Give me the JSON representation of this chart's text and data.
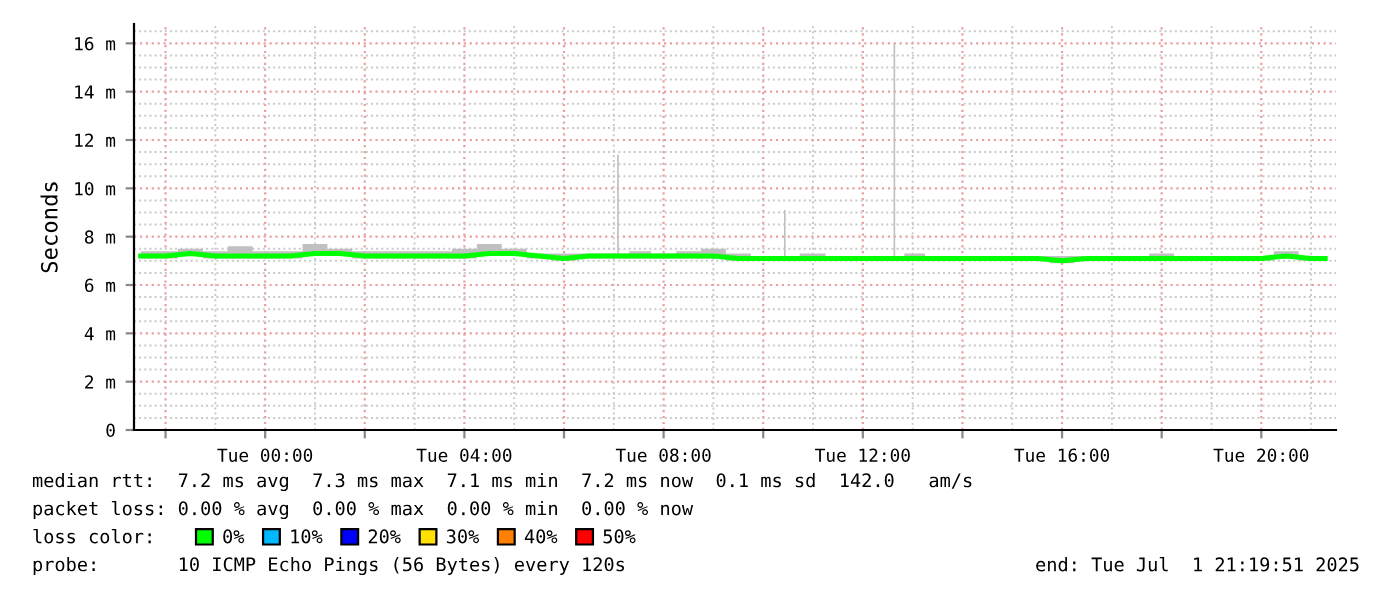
{
  "chart_data": {
    "type": "line",
    "ylabel": "Seconds",
    "x": [
      "2025-06-30T21:30",
      "2025-06-30T22:00",
      "2025-06-30T22:30",
      "2025-06-30T23:00",
      "2025-06-30T23:30",
      "2025-07-01T00:00",
      "2025-07-01T00:30",
      "2025-07-01T01:00",
      "2025-07-01T01:30",
      "2025-07-01T02:00",
      "2025-07-01T02:30",
      "2025-07-01T03:00",
      "2025-07-01T03:30",
      "2025-07-01T04:00",
      "2025-07-01T04:30",
      "2025-07-01T05:00",
      "2025-07-01T05:30",
      "2025-07-01T06:00",
      "2025-07-01T06:30",
      "2025-07-01T07:00",
      "2025-07-01T07:03",
      "2025-07-01T07:05",
      "2025-07-01T07:07",
      "2025-07-01T07:30",
      "2025-07-01T08:00",
      "2025-07-01T08:30",
      "2025-07-01T09:00",
      "2025-07-01T09:30",
      "2025-07-01T10:00",
      "2025-07-01T10:24",
      "2025-07-01T10:26",
      "2025-07-01T10:28",
      "2025-07-01T11:00",
      "2025-07-01T11:30",
      "2025-07-01T12:00",
      "2025-07-01T12:30",
      "2025-07-01T12:36",
      "2025-07-01T12:38",
      "2025-07-01T12:40",
      "2025-07-01T13:00",
      "2025-07-01T13:30",
      "2025-07-01T14:00",
      "2025-07-01T14:30",
      "2025-07-01T15:00",
      "2025-07-01T15:30",
      "2025-07-01T16:00",
      "2025-07-01T16:30",
      "2025-07-01T17:00",
      "2025-07-01T17:30",
      "2025-07-01T18:00",
      "2025-07-01T18:30",
      "2025-07-01T19:00",
      "2025-07-01T19:30",
      "2025-07-01T20:00",
      "2025-07-01T20:30",
      "2025-07-01T21:00",
      "2025-07-01T21:17"
    ],
    "series": [
      {
        "name": "0%",
        "color": "#00ff00",
        "values": [
          7.2,
          7.2,
          7.3,
          7.2,
          7.2,
          7.2,
          7.2,
          7.3,
          7.3,
          7.2,
          7.2,
          7.2,
          7.2,
          7.2,
          7.3,
          7.3,
          7.2,
          7.1,
          7.2,
          7.2,
          7.2,
          7.2,
          7.2,
          7.2,
          7.2,
          7.2,
          7.2,
          7.1,
          7.1,
          7.1,
          7.1,
          7.1,
          7.1,
          7.1,
          7.1,
          7.1,
          7.1,
          7.1,
          7.1,
          7.1,
          7.1,
          7.1,
          7.1,
          7.1,
          7.1,
          7.0,
          7.1,
          7.1,
          7.1,
          7.1,
          7.1,
          7.1,
          7.1,
          7.1,
          7.2,
          7.1,
          7.1
        ],
        "lower": [
          7.1,
          7.1,
          7.2,
          7.1,
          7.1,
          7.1,
          7.1,
          7.2,
          7.2,
          7.1,
          7.1,
          7.1,
          7.1,
          7.1,
          7.2,
          7.2,
          7.1,
          7.0,
          7.1,
          7.1,
          7.1,
          7.1,
          7.1,
          7.1,
          7.1,
          7.1,
          7.1,
          7.0,
          7.0,
          7.0,
          7.0,
          7.0,
          7.0,
          7.0,
          7.0,
          7.0,
          7.0,
          7.0,
          7.0,
          7.0,
          7.0,
          7.0,
          7.0,
          7.0,
          7.0,
          6.9,
          7.0,
          7.0,
          7.0,
          7.0,
          7.0,
          7.0,
          7.0,
          7.0,
          7.1,
          7.0,
          7.0
        ],
        "upper": [
          7.4,
          7.4,
          7.5,
          7.4,
          7.6,
          7.4,
          7.4,
          7.7,
          7.5,
          7.4,
          7.4,
          7.4,
          7.4,
          7.5,
          7.7,
          7.5,
          7.3,
          7.3,
          7.3,
          7.3,
          7.3,
          11.4,
          7.3,
          7.4,
          7.3,
          7.4,
          7.5,
          7.3,
          7.2,
          7.2,
          9.1,
          7.2,
          7.3,
          7.2,
          7.2,
          7.2,
          7.2,
          16.0,
          7.2,
          7.3,
          7.2,
          7.2,
          7.2,
          7.2,
          7.2,
          7.2,
          7.2,
          7.2,
          7.2,
          7.3,
          7.2,
          7.2,
          7.2,
          7.2,
          7.4,
          7.2,
          7.2
        ]
      },
      {
        "name": "10%",
        "color": "#00b8ff",
        "values": [
          null,
          null,
          null,
          null,
          null,
          null,
          null,
          null,
          null,
          null,
          null,
          null,
          null,
          null,
          null,
          null,
          null,
          null,
          null,
          null,
          null,
          null,
          null,
          null,
          null,
          null,
          null,
          null,
          null,
          null,
          null,
          null,
          null,
          null,
          null,
          null,
          null,
          null,
          null,
          null,
          null,
          null,
          null,
          null,
          null,
          null,
          null,
          null,
          null,
          null,
          null,
          null,
          null,
          null,
          null,
          null,
          null
        ]
      },
      {
        "name": "20%",
        "color": "#0000ff",
        "values": [
          null,
          null,
          null,
          null,
          null,
          null,
          null,
          null,
          null,
          null,
          null,
          null,
          null,
          null,
          null,
          null,
          null,
          null,
          null,
          null,
          null,
          null,
          null,
          null,
          null,
          null,
          null,
          null,
          null,
          null,
          null,
          null,
          null,
          null,
          null,
          null,
          null,
          null,
          null,
          null,
          null,
          null,
          null,
          null,
          null,
          null,
          null,
          null,
          null,
          null,
          null,
          null,
          null,
          null,
          null,
          null,
          null
        ]
      },
      {
        "name": "30%",
        "color": "#ffe000",
        "values": [
          null,
          null,
          null,
          null,
          null,
          null,
          null,
          null,
          null,
          null,
          null,
          null,
          null,
          null,
          null,
          null,
          null,
          null,
          null,
          null,
          null,
          null,
          null,
          null,
          null,
          null,
          null,
          null,
          null,
          null,
          null,
          null,
          null,
          null,
          null,
          null,
          null,
          null,
          null,
          null,
          null,
          null,
          null,
          null,
          null,
          null,
          null,
          null,
          null,
          null,
          null,
          null,
          null,
          null,
          null,
          null,
          null
        ]
      },
      {
        "name": "40%",
        "color": "#ff8000",
        "values": [
          null,
          null,
          null,
          null,
          null,
          null,
          null,
          null,
          null,
          null,
          null,
          null,
          null,
          null,
          null,
          null,
          null,
          null,
          null,
          null,
          null,
          null,
          null,
          null,
          null,
          null,
          null,
          null,
          null,
          null,
          null,
          null,
          null,
          null,
          null,
          null,
          null,
          null,
          null,
          null,
          null,
          null,
          null,
          null,
          null,
          null,
          null,
          null,
          null,
          null,
          null,
          null,
          null,
          null,
          null,
          null,
          null
        ]
      },
      {
        "name": "50%",
        "color": "#ff0000",
        "values": [
          null,
          null,
          null,
          null,
          null,
          null,
          null,
          null,
          null,
          null,
          null,
          null,
          null,
          null,
          null,
          null,
          null,
          null,
          null,
          null,
          null,
          null,
          null,
          null,
          null,
          null,
          null,
          null,
          null,
          null,
          null,
          null,
          null,
          null,
          null,
          null,
          null,
          null,
          null,
          null,
          null,
          null,
          null,
          null,
          null,
          null,
          null,
          null,
          null,
          null,
          null,
          null,
          null,
          null,
          null,
          null,
          null
        ]
      }
    ],
    "legend_title": "loss color:",
    "legend": "bottom",
    "grid": true,
    "xlim": [
      "2025-06-30T21:22",
      "2025-07-01T21:30"
    ],
    "xticks": [
      {
        "value": "2025-06-30T22:00",
        "label": null
      },
      {
        "value": "2025-07-01T00:00",
        "label": "Tue 00:00"
      },
      {
        "value": "2025-07-01T02:00",
        "label": null
      },
      {
        "value": "2025-07-01T04:00",
        "label": "Tue 04:00"
      },
      {
        "value": "2025-07-01T06:00",
        "label": null
      },
      {
        "value": "2025-07-01T08:00",
        "label": "Tue 08:00"
      },
      {
        "value": "2025-07-01T10:00",
        "label": null
      },
      {
        "value": "2025-07-01T12:00",
        "label": "Tue 12:00"
      },
      {
        "value": "2025-07-01T14:00",
        "label": null
      },
      {
        "value": "2025-07-01T16:00",
        "label": "Tue 16:00"
      },
      {
        "value": "2025-07-01T18:00",
        "label": null
      },
      {
        "value": "2025-07-01T20:00",
        "label": "Tue 20:00"
      }
    ],
    "ylim": [
      0,
      16.8
    ],
    "yticks": [
      0,
      {
        "value": 2,
        "label": "2 m"
      },
      {
        "value": 4,
        "label": "4 m"
      },
      {
        "value": 6,
        "label": "6 m"
      },
      {
        "value": 8,
        "label": "8 m"
      },
      {
        "value": 10,
        "label": "10 m"
      },
      {
        "value": 12,
        "label": "12 m"
      },
      {
        "value": 14,
        "label": "14 m"
      },
      {
        "value": 16,
        "label": "16 m"
      }
    ],
    "annotations": [
      "median rtt:  7.2 ms avg  7.3 ms max  7.1 ms min  7.2 ms now  0.1 ms sd  142.0   am/s",
      "packet loss: 0.00 % avg  0.00 % max  0.00 % min  0.00 % now",
      "probe:       10 ICMP Echo Pings (56 Bytes) every 120s",
      "end: Tue Jul  1 21:19:51 2025"
    ]
  }
}
